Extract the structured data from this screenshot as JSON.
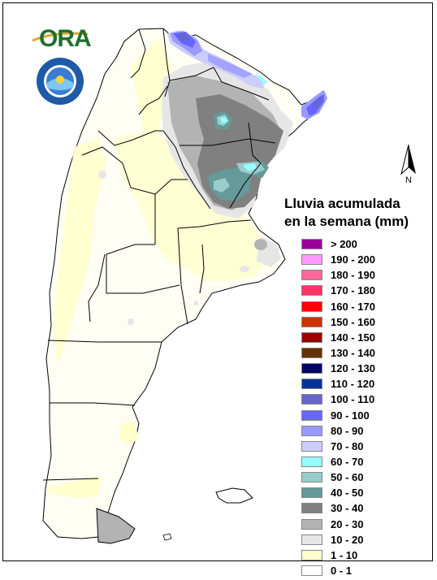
{
  "logo": {
    "text": "ORA"
  },
  "north_arrow": {
    "label": "N"
  },
  "legend": {
    "title_line1": "Lluvia acumulada",
    "title_line2": "en la semana (mm)",
    "items": [
      {
        "label": "> 200",
        "color": "#990099"
      },
      {
        "label": "190 - 200",
        "color": "#ff99ff"
      },
      {
        "label": "180 - 190",
        "color": "#ff6699"
      },
      {
        "label": "170 - 180",
        "color": "#ff3366"
      },
      {
        "label": "160 - 170",
        "color": "#ff0000"
      },
      {
        "label": "150 - 160",
        "color": "#cc3300"
      },
      {
        "label": "140 - 150",
        "color": "#990000"
      },
      {
        "label": "130 - 140",
        "color": "#663300"
      },
      {
        "label": "120 - 130",
        "color": "#000066"
      },
      {
        "label": "110 - 120",
        "color": "#003399"
      },
      {
        "label": "100 - 110",
        "color": "#6666cc"
      },
      {
        "label": "90 - 100",
        "color": "#6666ff"
      },
      {
        "label": "80 - 90",
        "color": "#9999ff"
      },
      {
        "label": "70 - 80",
        "color": "#ccccff"
      },
      {
        "label": "60 - 70",
        "color": "#99ffff"
      },
      {
        "label": "50 - 60",
        "color": "#99cccc"
      },
      {
        "label": "40 - 50",
        "color": "#669999"
      },
      {
        "label": "30 - 40",
        "color": "#808080"
      },
      {
        "label": "20 - 30",
        "color": "#b3b3b3"
      },
      {
        "label": "10 - 20",
        "color": "#e6e6e6"
      },
      {
        "label": "1 - 10",
        "color": "#ffffcc"
      },
      {
        "label": "0 - 1",
        "color": "#ffffff"
      }
    ]
  }
}
